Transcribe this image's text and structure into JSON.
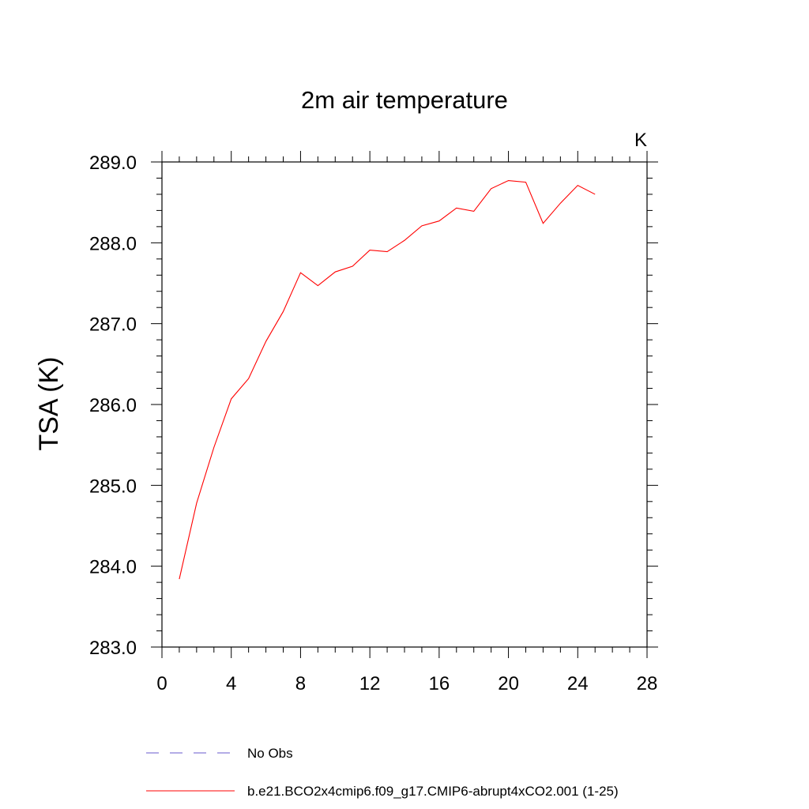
{
  "chart_data": {
    "type": "line",
    "title": "2m air temperature",
    "units_label": "K",
    "ylabel": "TSA  (K)",
    "xlabel": "",
    "xlim": [
      0,
      28
    ],
    "ylim": [
      283.0,
      289.0
    ],
    "xticks": [
      "0",
      "4",
      "8",
      "12",
      "16",
      "20",
      "24",
      "28"
    ],
    "yticks": [
      "283.0",
      "284.0",
      "285.0",
      "286.0",
      "287.0",
      "288.0",
      "289.0"
    ],
    "grid": false,
    "legend_position": "bottom",
    "series": [
      {
        "name": "b.e21.BCO2x4cmip6.f09_g17.CMIP6-abrupt4xCO2.001 (1-25)",
        "color": "#ff0000",
        "style": "solid",
        "x": [
          1,
          2,
          3,
          4,
          5,
          6,
          7,
          8,
          9,
          10,
          11,
          12,
          13,
          14,
          15,
          16,
          17,
          18,
          19,
          20,
          21,
          22,
          23,
          24,
          25
        ],
        "values": [
          283.84,
          284.78,
          285.47,
          286.07,
          286.32,
          286.78,
          287.15,
          287.63,
          287.47,
          287.64,
          287.71,
          287.91,
          287.89,
          288.03,
          288.21,
          288.27,
          288.43,
          288.39,
          288.67,
          288.77,
          288.75,
          288.24,
          288.49,
          288.71,
          288.6
        ]
      },
      {
        "name": "No Obs",
        "color": "#6a5acd",
        "style": "dashed",
        "x": [],
        "values": []
      }
    ]
  }
}
